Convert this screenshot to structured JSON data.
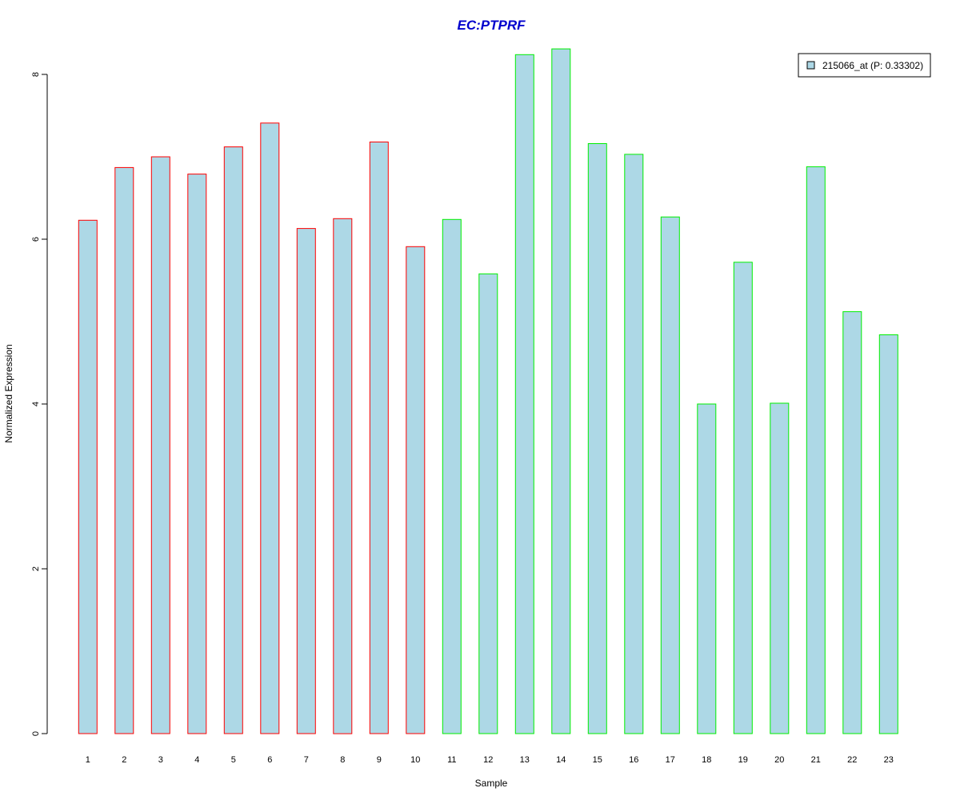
{
  "chart_data": {
    "type": "bar",
    "title": "EC:PTPRF",
    "xlabel": "Sample",
    "ylabel": "Normalized Expression",
    "categories": [
      "1",
      "2",
      "3",
      "4",
      "5",
      "6",
      "7",
      "8",
      "9",
      "10",
      "11",
      "12",
      "13",
      "14",
      "15",
      "16",
      "17",
      "18",
      "19",
      "20",
      "21",
      "22",
      "23"
    ],
    "series": [
      {
        "name": "215066_at (P: 0.33302)",
        "values": [
          6.23,
          6.87,
          7.0,
          6.79,
          7.12,
          7.41,
          6.13,
          6.25,
          7.18,
          5.91,
          6.24,
          5.58,
          8.24,
          8.31,
          7.16,
          7.03,
          6.27,
          4.0,
          5.72,
          4.01,
          6.88,
          5.12,
          4.84
        ]
      }
    ],
    "groups": [
      {
        "samples": [
          1,
          2,
          3,
          4,
          5,
          6,
          7,
          8,
          9,
          10
        ],
        "border_color": "#ff0000"
      },
      {
        "samples": [
          11,
          12,
          13,
          14,
          15,
          16,
          17,
          18,
          19,
          20,
          21,
          22,
          23
        ],
        "border_color": "#00ee00"
      }
    ],
    "yticks": [
      0,
      2,
      4,
      6,
      8
    ],
    "ylim": [
      0,
      8.4
    ],
    "legend_position": "top-right",
    "grid": false,
    "colors": {
      "bar_fill": "#add8e6",
      "title": "#0000cd",
      "axis": "#000000"
    }
  }
}
